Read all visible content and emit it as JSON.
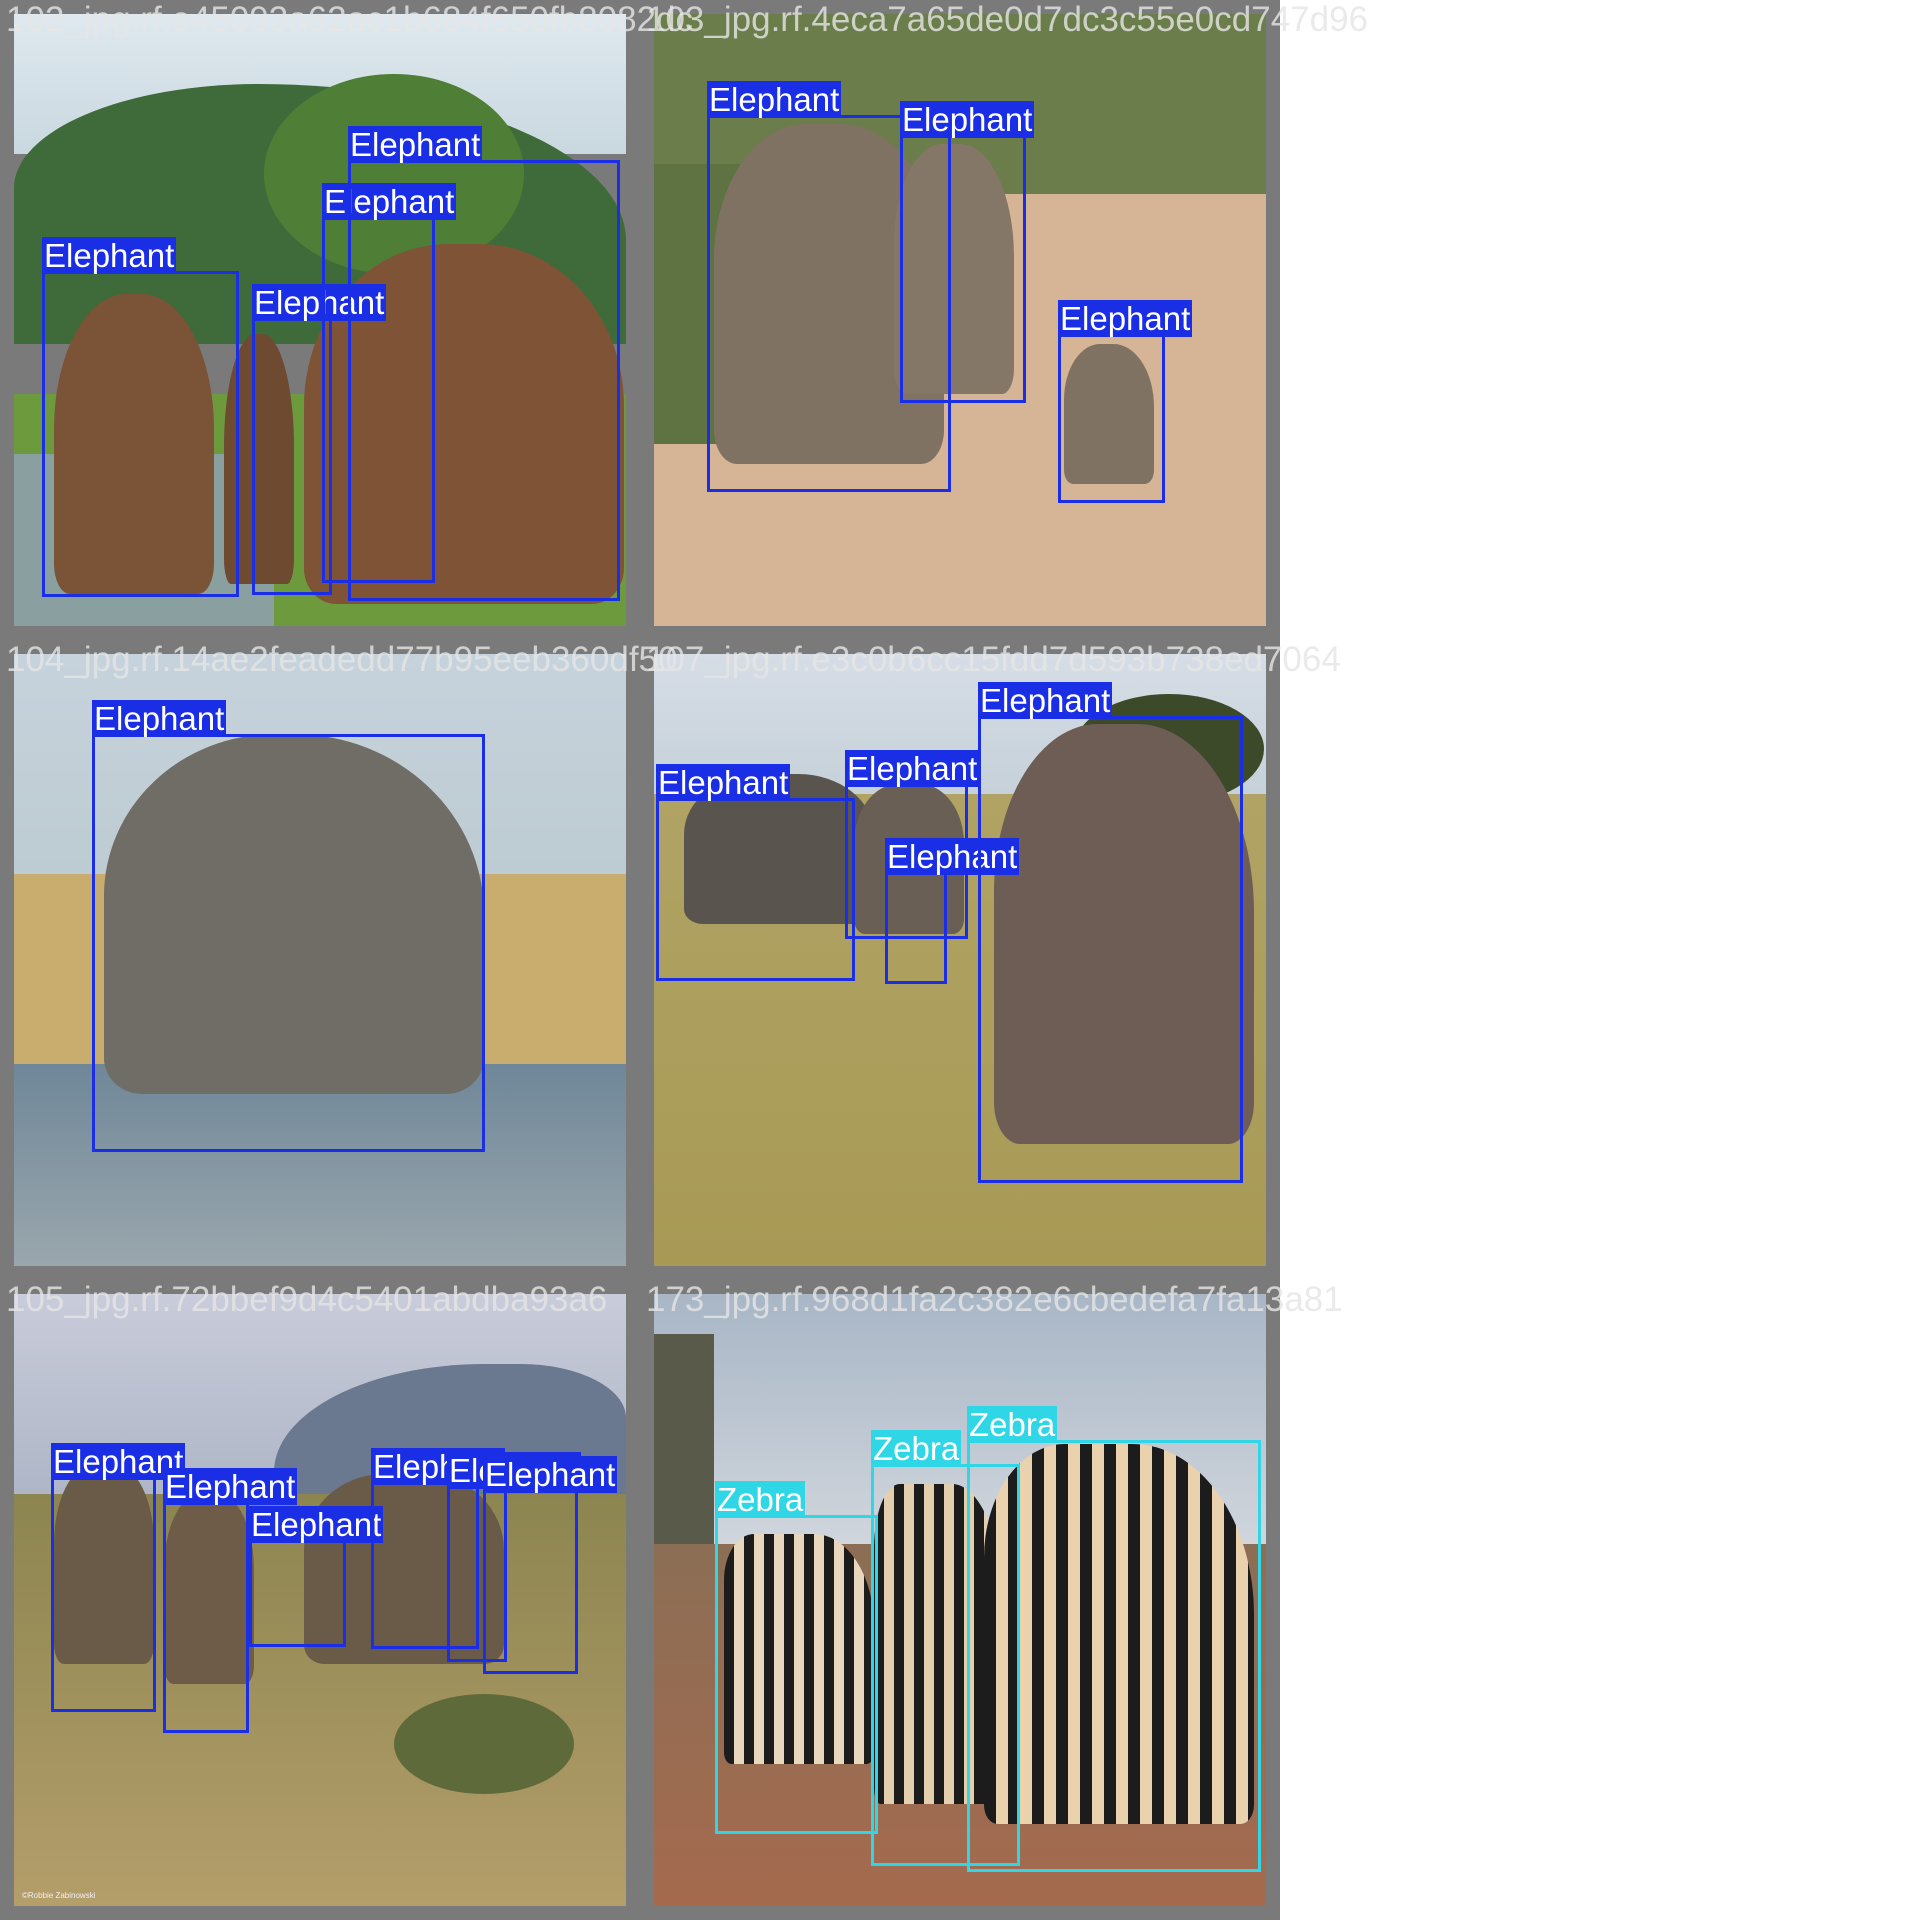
{
  "tiles": [
    {
      "title": "102_jpg.rf.e45093a62ac1b684f650fb8082dc",
      "scene": "elephants-river",
      "boxes": [
        {
          "label": "Elephant",
          "class": "elephant"
        },
        {
          "label": "Elephant",
          "class": "elephant"
        },
        {
          "label": "Elephant",
          "class": "elephant"
        },
        {
          "label": "Elephant",
          "class": "elephant"
        }
      ]
    },
    {
      "title": "103_jpg.rf.4eca7a65de0d7dc3c55e0cd747d96",
      "scene": "elephants-road",
      "boxes": [
        {
          "label": "Elephant",
          "class": "elephant"
        },
        {
          "label": "Elephant",
          "class": "elephant"
        },
        {
          "label": "Elephant",
          "class": "elephant"
        }
      ]
    },
    {
      "title": "104_jpg.rf.14ae2feadedd77b95eeb360df50",
      "scene": "elephant-water",
      "boxes": [
        {
          "label": "Elephant",
          "class": "elephant"
        }
      ]
    },
    {
      "title": "107_jpg.rf.e3c0b6cc15fdd7d593b738ed7064",
      "scene": "elephants-grass",
      "boxes": [
        {
          "label": "Elephant",
          "class": "elephant"
        },
        {
          "label": "Elephant",
          "class": "elephant"
        },
        {
          "label": "Elephant",
          "class": "elephant"
        },
        {
          "label": "Elephant",
          "class": "elephant"
        }
      ]
    },
    {
      "title": "105_jpg.rf.72bbef9d4c5401abdba93a6",
      "scene": "elephants-savanna",
      "boxes": [
        {
          "label": "Elephant",
          "class": "elephant"
        },
        {
          "label": "Elephant",
          "class": "elephant"
        },
        {
          "label": "Elephant",
          "class": "elephant"
        },
        {
          "label": "Elephant",
          "class": "elephant"
        },
        {
          "label": "Elephant",
          "class": "elephant"
        },
        {
          "label": "Elephant",
          "class": "elephant"
        }
      ]
    },
    {
      "title": "173_jpg.rf.968d1fa2c382e6cbedefa7fa13a81",
      "scene": "zebras-field",
      "boxes": [
        {
          "label": "Zebra",
          "class": "zebra"
        },
        {
          "label": "Zebra",
          "class": "zebra"
        },
        {
          "label": "Zebra",
          "class": "zebra"
        }
      ]
    }
  ],
  "colors": {
    "elephant": "#1a2ee6",
    "zebra": "#2ed6e6",
    "border": "#7a7a7a"
  },
  "photo_credit": "©Robbie Zabinowski"
}
